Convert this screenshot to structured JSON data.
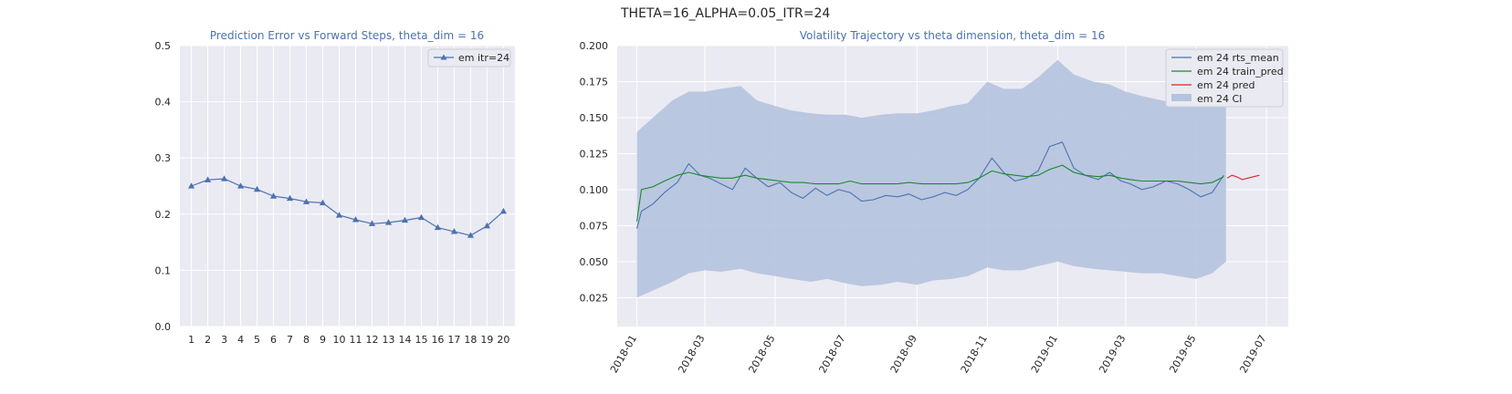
{
  "figure": {
    "suptitle": "THETA=16_ALPHA=0.05_ITR=24"
  },
  "colors": {
    "panel_bg": "#eaeaf2",
    "grid": "#ffffff",
    "blue": "#4c72b0",
    "green": "#1a8a2a",
    "red": "#d62728",
    "ci": "#b5c3de"
  },
  "chart_data": [
    {
      "type": "line",
      "title": "Prediction Error vs Forward Steps, theta_dim = 16",
      "xlabel": "",
      "ylabel": "",
      "x": [
        1,
        2,
        3,
        4,
        5,
        6,
        7,
        8,
        9,
        10,
        11,
        12,
        13,
        14,
        15,
        16,
        17,
        18,
        19,
        20
      ],
      "ylim": [
        0,
        0.5
      ],
      "yticks": [
        0.0,
        0.1,
        0.2,
        0.3,
        0.4,
        0.5
      ],
      "grid": true,
      "legend_position": "upper right",
      "series": [
        {
          "name": "em itr=24",
          "marker": "triangle",
          "values": [
            0.25,
            0.261,
            0.263,
            0.25,
            0.244,
            0.232,
            0.228,
            0.222,
            0.22,
            0.198,
            0.19,
            0.183,
            0.185,
            0.189,
            0.194,
            0.176,
            0.169,
            0.162,
            0.179,
            0.205
          ]
        }
      ]
    },
    {
      "type": "line",
      "title": "Volatility Trajectory vs theta dimension, theta_dim = 16",
      "xlabel": "",
      "ylabel": "",
      "xlim": [
        "2017-12-15",
        "2019-07-20"
      ],
      "ylim": [
        0.005,
        0.2
      ],
      "yticks": [
        0.025,
        0.05,
        0.075,
        0.1,
        0.125,
        0.15,
        0.175,
        0.2
      ],
      "xticks": [
        "2018-01",
        "2018-03",
        "2018-05",
        "2018-07",
        "2018-09",
        "2018-11",
        "2019-01",
        "2019-03",
        "2019-05",
        "2019-07"
      ],
      "grid": true,
      "legend_position": "upper right",
      "series": [
        {
          "name": "em 24 rts_mean",
          "color": "blue",
          "x": [
            "2018-01-01",
            "2018-01-05",
            "2018-01-15",
            "2018-01-25",
            "2018-02-05",
            "2018-02-15",
            "2018-02-25",
            "2018-03-05",
            "2018-03-15",
            "2018-03-25",
            "2018-04-05",
            "2018-04-15",
            "2018-04-25",
            "2018-05-05",
            "2018-05-15",
            "2018-05-25",
            "2018-06-05",
            "2018-06-15",
            "2018-06-25",
            "2018-07-05",
            "2018-07-15",
            "2018-07-25",
            "2018-08-05",
            "2018-08-15",
            "2018-08-25",
            "2018-09-05",
            "2018-09-15",
            "2018-09-25",
            "2018-10-05",
            "2018-10-15",
            "2018-10-25",
            "2018-11-05",
            "2018-11-15",
            "2018-11-25",
            "2018-12-05",
            "2018-12-15",
            "2018-12-25",
            "2019-01-05",
            "2019-01-15",
            "2019-01-25",
            "2019-02-05",
            "2019-02-15",
            "2019-02-25",
            "2019-03-05",
            "2019-03-15",
            "2019-03-25",
            "2019-04-05",
            "2019-04-15",
            "2019-04-25",
            "2019-05-05",
            "2019-05-15",
            "2019-05-25"
          ],
          "values": [
            0.073,
            0.085,
            0.09,
            0.098,
            0.105,
            0.118,
            0.11,
            0.108,
            0.104,
            0.1,
            0.115,
            0.108,
            0.102,
            0.105,
            0.098,
            0.094,
            0.101,
            0.096,
            0.1,
            0.098,
            0.092,
            0.093,
            0.096,
            0.095,
            0.097,
            0.093,
            0.095,
            0.098,
            0.096,
            0.1,
            0.108,
            0.122,
            0.112,
            0.106,
            0.108,
            0.113,
            0.13,
            0.133,
            0.115,
            0.11,
            0.107,
            0.112,
            0.106,
            0.104,
            0.1,
            0.102,
            0.106,
            0.104,
            0.1,
            0.095,
            0.098,
            0.11
          ]
        },
        {
          "name": "em 24 train_pred",
          "color": "green",
          "x": [
            "2018-01-01",
            "2018-01-05",
            "2018-01-15",
            "2018-01-25",
            "2018-02-05",
            "2018-02-15",
            "2018-02-25",
            "2018-03-05",
            "2018-03-15",
            "2018-03-25",
            "2018-04-05",
            "2018-04-15",
            "2018-04-25",
            "2018-05-05",
            "2018-05-15",
            "2018-05-25",
            "2018-06-05",
            "2018-06-15",
            "2018-06-25",
            "2018-07-05",
            "2018-07-15",
            "2018-07-25",
            "2018-08-05",
            "2018-08-15",
            "2018-08-25",
            "2018-09-05",
            "2018-09-15",
            "2018-09-25",
            "2018-10-05",
            "2018-10-15",
            "2018-10-25",
            "2018-11-05",
            "2018-11-15",
            "2018-11-25",
            "2018-12-05",
            "2018-12-15",
            "2018-12-25",
            "2019-01-05",
            "2019-01-15",
            "2019-01-25",
            "2019-02-05",
            "2019-02-15",
            "2019-02-25",
            "2019-03-05",
            "2019-03-15",
            "2019-03-25",
            "2019-04-05",
            "2019-04-15",
            "2019-04-25",
            "2019-05-05",
            "2019-05-15",
            "2019-05-25"
          ],
          "values": [
            0.078,
            0.1,
            0.102,
            0.106,
            0.11,
            0.112,
            0.11,
            0.109,
            0.108,
            0.108,
            0.11,
            0.108,
            0.107,
            0.106,
            0.105,
            0.105,
            0.104,
            0.104,
            0.104,
            0.106,
            0.104,
            0.104,
            0.104,
            0.104,
            0.105,
            0.104,
            0.104,
            0.104,
            0.104,
            0.105,
            0.108,
            0.113,
            0.111,
            0.11,
            0.109,
            0.11,
            0.114,
            0.117,
            0.112,
            0.11,
            0.109,
            0.11,
            0.108,
            0.107,
            0.106,
            0.106,
            0.106,
            0.106,
            0.105,
            0.104,
            0.105,
            0.109
          ]
        },
        {
          "name": "em 24 pred",
          "color": "red",
          "x": [
            "2019-05-28",
            "2019-06-01",
            "2019-06-05",
            "2019-06-10",
            "2019-06-15",
            "2019-06-20",
            "2019-06-25"
          ],
          "values": [
            0.108,
            0.11,
            0.109,
            0.107,
            0.108,
            0.109,
            0.11
          ]
        },
        {
          "name": "em 24 CI",
          "color": "ci",
          "kind": "band",
          "x": [
            "2018-01-01",
            "2018-01-15",
            "2018-02-01",
            "2018-02-15",
            "2018-03-01",
            "2018-03-15",
            "2018-04-01",
            "2018-04-15",
            "2018-05-01",
            "2018-05-15",
            "2018-06-01",
            "2018-06-15",
            "2018-07-01",
            "2018-07-15",
            "2018-08-01",
            "2018-08-15",
            "2018-09-01",
            "2018-09-15",
            "2018-10-01",
            "2018-10-15",
            "2018-11-01",
            "2018-11-15",
            "2018-12-01",
            "2018-12-15",
            "2019-01-01",
            "2019-01-15",
            "2019-02-01",
            "2019-02-15",
            "2019-03-01",
            "2019-03-15",
            "2019-04-01",
            "2019-04-15",
            "2019-05-01",
            "2019-05-15",
            "2019-05-27"
          ],
          "lower": [
            0.025,
            0.03,
            0.036,
            0.042,
            0.044,
            0.043,
            0.045,
            0.042,
            0.04,
            0.038,
            0.036,
            0.038,
            0.035,
            0.033,
            0.034,
            0.036,
            0.034,
            0.037,
            0.038,
            0.04,
            0.046,
            0.044,
            0.044,
            0.047,
            0.05,
            0.047,
            0.045,
            0.044,
            0.043,
            0.042,
            0.042,
            0.04,
            0.038,
            0.042,
            0.05
          ],
          "upper": [
            0.14,
            0.15,
            0.162,
            0.168,
            0.168,
            0.17,
            0.172,
            0.162,
            0.158,
            0.155,
            0.153,
            0.152,
            0.152,
            0.15,
            0.152,
            0.153,
            0.153,
            0.155,
            0.158,
            0.16,
            0.175,
            0.17,
            0.17,
            0.178,
            0.19,
            0.18,
            0.175,
            0.173,
            0.168,
            0.165,
            0.162,
            0.16,
            0.163,
            0.165,
            0.165
          ]
        }
      ]
    }
  ]
}
